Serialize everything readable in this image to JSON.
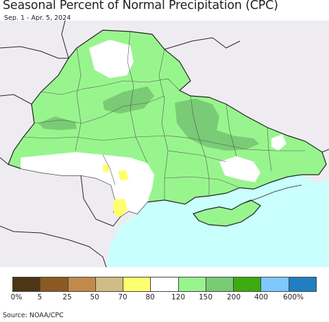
{
  "title": "Seasonal Percent of Normal Precipitation (CPC)",
  "subtitle": "Sep. 1 - Apr. 5, 2024",
  "source": "Source: NOAA/CPC",
  "legend": {
    "colors": [
      "#4d3616",
      "#8a5a22",
      "#c18a4a",
      "#d0bc85",
      "#feff6e",
      "#ffffff",
      "#98f58e",
      "#79cb75",
      "#3cab10",
      "#7ec8fd",
      "#1f7fc0"
    ],
    "labels": [
      "0%",
      "5",
      "25",
      "50",
      "70",
      "80",
      "120",
      "150",
      "200",
      "400",
      "600%"
    ]
  },
  "map_colors": {
    "outside": "#efecf1",
    "sea": "#c9fffd",
    "wet": "#98f58e",
    "very_wet": "#79cb75",
    "near_normal": "#ffffff",
    "dry": "#feff6e",
    "border": "#222222",
    "oblast": "#555555"
  }
}
